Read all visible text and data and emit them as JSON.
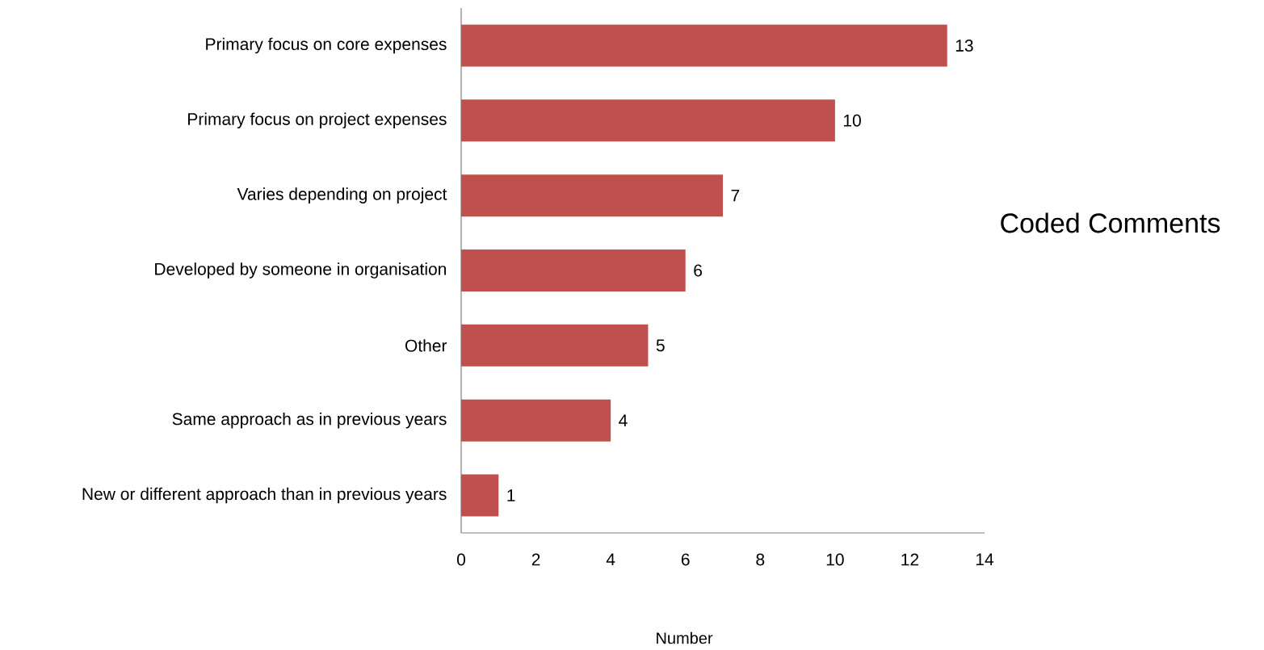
{
  "chart_data": {
    "type": "bar",
    "orientation": "horizontal",
    "xlabel": "Number",
    "categories": [
      "Primary focus on core expenses",
      "Primary focus on project expenses",
      "Varies depending on project",
      "Developed by someone in organisation",
      "Other",
      "Same approach as in previous years",
      "New or different approach than in previous years"
    ],
    "series": [
      {
        "name": "Coded Comments",
        "color": "#c0504d",
        "values": [
          13,
          10,
          7,
          6,
          5,
          4,
          1
        ]
      }
    ],
    "xlim": [
      0,
      14
    ],
    "xticks": [
      0,
      2,
      4,
      6,
      8,
      10,
      12,
      14
    ],
    "data_labels": true,
    "grid": false,
    "legend": "right"
  }
}
